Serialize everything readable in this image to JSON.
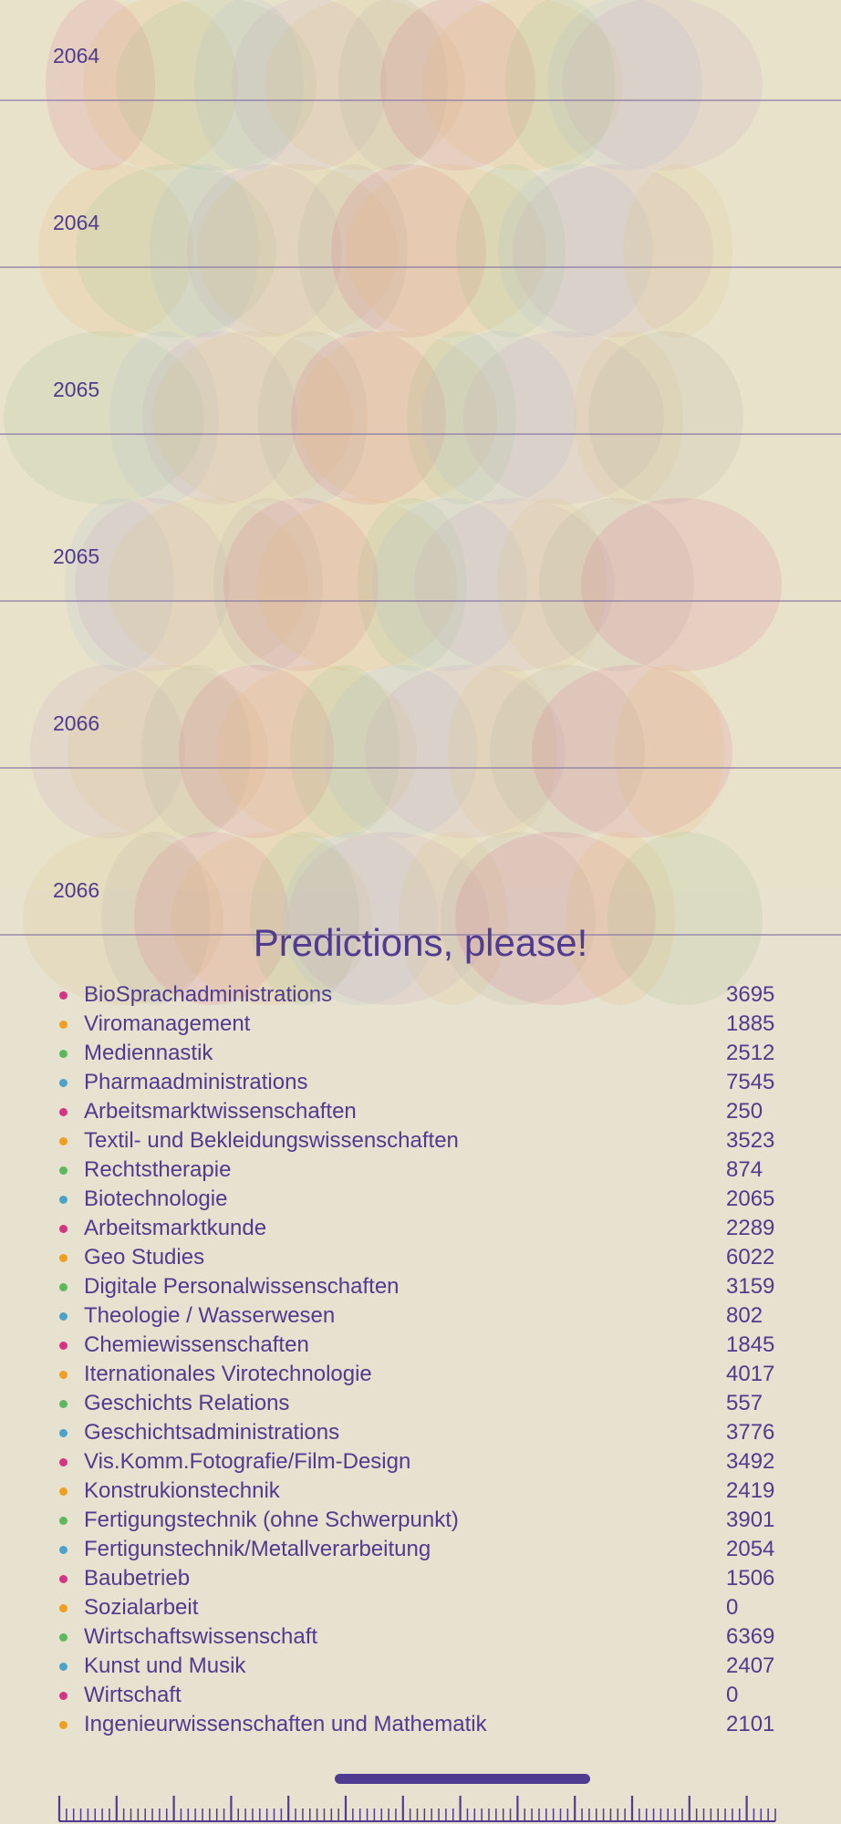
{
  "timeline": {
    "rows": [
      {
        "year": "2064"
      },
      {
        "year": "2064"
      },
      {
        "year": "2065"
      },
      {
        "year": "2065"
      },
      {
        "year": "2066"
      },
      {
        "year": "2066"
      }
    ]
  },
  "panel": {
    "title": "Predictions, please!",
    "items": [
      {
        "name": "BioSprachadministrations",
        "value": "3695",
        "color": "#d63384"
      },
      {
        "name": "Viromanagement",
        "value": "1885",
        "color": "#f0a020"
      },
      {
        "name": "Mediennastik",
        "value": "2512",
        "color": "#5cb85c"
      },
      {
        "name": "Pharmaadministrations",
        "value": "7545",
        "color": "#4aa3c8"
      },
      {
        "name": "Arbeitsmarktwissenschaften",
        "value": "250",
        "color": "#d63384"
      },
      {
        "name": "Textil- und Bekleidungswissenschaften",
        "value": "3523",
        "color": "#f0a020"
      },
      {
        "name": "Rechtstherapie",
        "value": "874",
        "color": "#5cb85c"
      },
      {
        "name": "Biotechnologie",
        "value": "2065",
        "color": "#4aa3c8"
      },
      {
        "name": "Arbeitsmarktkunde",
        "value": "2289",
        "color": "#d63384"
      },
      {
        "name": "Geo Studies",
        "value": "6022",
        "color": "#f0a020"
      },
      {
        "name": "Digitale Personalwissenschaften",
        "value": "3159",
        "color": "#5cb85c"
      },
      {
        "name": "Theologie / Wasserwesen",
        "value": "802",
        "color": "#4aa3c8"
      },
      {
        "name": "Chemiewissenschaften",
        "value": "1845",
        "color": "#d63384"
      },
      {
        "name": "Iternationales Virotechnologie",
        "value": "4017",
        "color": "#f0a020"
      },
      {
        "name": "Geschichts Relations",
        "value": "557",
        "color": "#5cb85c"
      },
      {
        "name": "Geschichtsadministrations",
        "value": "3776",
        "color": "#4aa3c8"
      },
      {
        "name": "Vis.Komm.Fotografie/Film-Design",
        "value": "3492",
        "color": "#d63384"
      },
      {
        "name": "Konstrukionstechnik",
        "value": "2419",
        "color": "#f0a020"
      },
      {
        "name": "Fertigungstechnik (ohne Schwerpunkt)",
        "value": "3901",
        "color": "#5cb85c"
      },
      {
        "name": "Fertigunstechnik/Metallverarbeitung",
        "value": "2054",
        "color": "#4aa3c8"
      },
      {
        "name": "Baubetrieb",
        "value": "1506",
        "color": "#d63384"
      },
      {
        "name": "Sozialarbeit",
        "value": "0",
        "color": "#f0a020"
      },
      {
        "name": "Wirtschaftswissenschaft",
        "value": "6369",
        "color": "#5cb85c"
      },
      {
        "name": "Kunst und Musik",
        "value": "2407",
        "color": "#4aa3c8"
      },
      {
        "name": "Wirtschaft",
        "value": "0",
        "color": "#d63384"
      },
      {
        "name": "Ingenieurwissenschaften und Mathematik",
        "value": "2101",
        "color": "#f0a020"
      }
    ]
  },
  "scrubber": {
    "range_start_fraction": 0.39,
    "range_end_fraction": 0.74,
    "color": "#4f3b8f"
  }
}
